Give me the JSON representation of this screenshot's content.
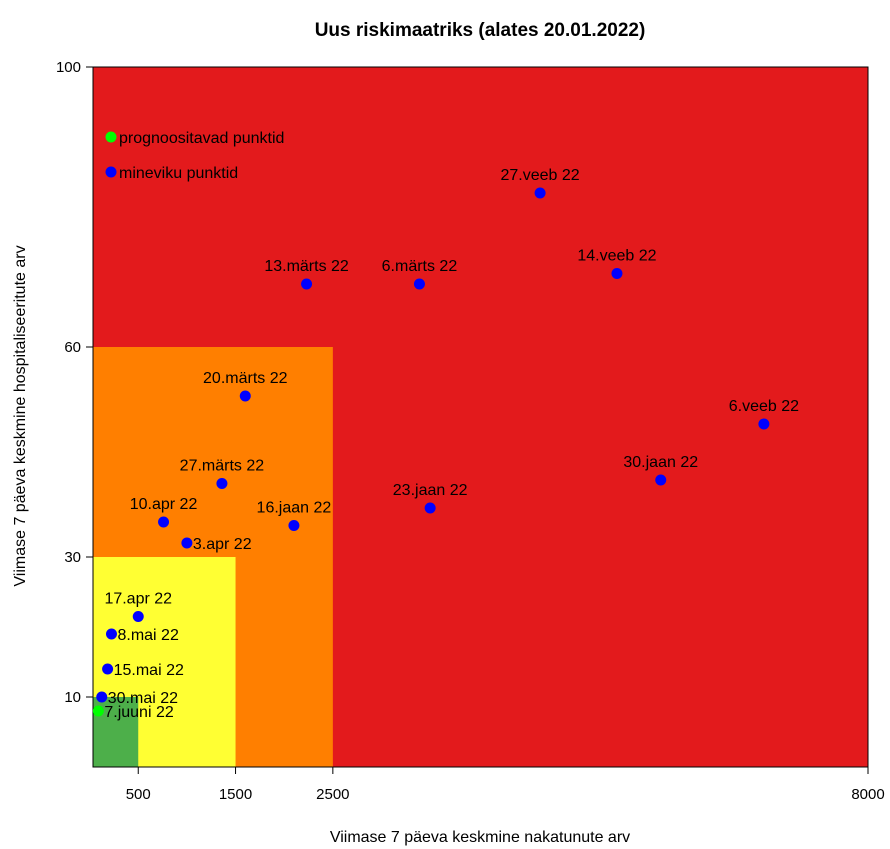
{
  "chart_data": {
    "type": "scatter",
    "title": "Uus riskimaatriks (alates 20.01.2022)",
    "xlabel": "Viimase 7 päeva keskmine nakatunute arv",
    "ylabel": "Viimase 7 päeva keskmine hospitaliseeritute arv",
    "xlim": [
      35,
      8000
    ],
    "ylim": [
      0,
      100
    ],
    "x_ticks": [
      {
        "value": 500,
        "label": "500"
      },
      {
        "value": 1500,
        "label": "1500"
      },
      {
        "value": 2500,
        "label": "2500"
      },
      {
        "value": 8000,
        "label": "8000"
      }
    ],
    "y_ticks": [
      {
        "value": 10,
        "label": "10"
      },
      {
        "value": 30,
        "label": "30"
      },
      {
        "value": 60,
        "label": "60"
      },
      {
        "value": 100,
        "label": "100"
      }
    ],
    "risk_zones": [
      {
        "name": "red",
        "color": "#e31a1c",
        "x_max": 8000,
        "y_max": 100
      },
      {
        "name": "orange",
        "color": "#ff7f00",
        "x_max": 2500,
        "y_max": 60
      },
      {
        "name": "yellow",
        "color": "#ffff33",
        "x_max": 1500,
        "y_max": 30
      },
      {
        "name": "green",
        "color": "#4daf4a",
        "x_max": 500,
        "y_max": 10
      }
    ],
    "legend": {
      "position": "top-left",
      "entries": [
        {
          "label": "prognoositavad punktid",
          "color": "#00ff00"
        },
        {
          "label": "mineviku punktid",
          "color": "#0000ff"
        }
      ]
    },
    "series": [
      {
        "name": "mineviku punktid",
        "color": "#0000ff",
        "points": [
          {
            "label": "16.jaan 22",
            "x": 2100,
            "y": 34.5,
            "label_pos": "above"
          },
          {
            "label": "23.jaan 22",
            "x": 3500,
            "y": 37,
            "label_pos": "above"
          },
          {
            "label": "30.jaan 22",
            "x": 5870,
            "y": 41,
            "label_pos": "above"
          },
          {
            "label": "6.veeb 22",
            "x": 6930,
            "y": 49,
            "label_pos": "above"
          },
          {
            "label": "14.veeb 22",
            "x": 5420,
            "y": 70.5,
            "label_pos": "above"
          },
          {
            "label": "27.veeb 22",
            "x": 4630,
            "y": 82,
            "label_pos": "above"
          },
          {
            "label": "6.märts 22",
            "x": 3390,
            "y": 69,
            "label_pos": "above"
          },
          {
            "label": "13.märts 22",
            "x": 2230,
            "y": 69,
            "label_pos": "above"
          },
          {
            "label": "20.märts 22",
            "x": 1600,
            "y": 53,
            "label_pos": "above"
          },
          {
            "label": "27.märts 22",
            "x": 1360,
            "y": 40.5,
            "label_pos": "above"
          },
          {
            "label": "3.apr 22",
            "x": 1000,
            "y": 32,
            "label_pos": "right"
          },
          {
            "label": "10.apr 22",
            "x": 760,
            "y": 35,
            "label_pos": "above"
          },
          {
            "label": "17.apr 22",
            "x": 500,
            "y": 21.5,
            "label_pos": "above"
          },
          {
            "label": "8.mai 22",
            "x": 225,
            "y": 19,
            "label_pos": "right"
          },
          {
            "label": "15.mai 22",
            "x": 185,
            "y": 14,
            "label_pos": "right"
          },
          {
            "label": "30.mai 22",
            "x": 125,
            "y": 10,
            "label_pos": "right"
          }
        ]
      },
      {
        "name": "prognoositavad punktid",
        "color": "#00ff00",
        "points": [
          {
            "label": "7.juuni 22",
            "x": 90,
            "y": 8,
            "label_pos": "right"
          }
        ]
      }
    ]
  }
}
